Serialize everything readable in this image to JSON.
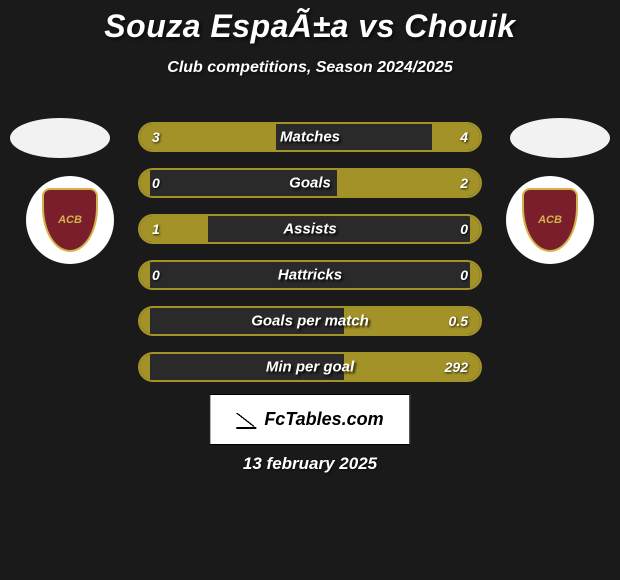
{
  "title": "Souza EspaÃ±a vs Chouik",
  "subtitle": "Club competitions, Season 2024/2025",
  "date": "13 february 2025",
  "brand": "FcTables.com",
  "badge_text": "ACB",
  "colors": {
    "bar_fill": "#a39227",
    "bar_border": "#a39227",
    "bg": "#1a1a1a",
    "badge_shield": "#7a1e2b",
    "badge_shield_border": "#d2b24a"
  },
  "bar_max_width_pct": 50,
  "stats": [
    {
      "label": "Matches",
      "left_val": "3",
      "right_val": "4",
      "left_pct": 40,
      "right_pct": 14
    },
    {
      "label": "Goals",
      "left_val": "0",
      "right_val": "2",
      "left_pct": 3,
      "right_pct": 42
    },
    {
      "label": "Assists",
      "left_val": "1",
      "right_val": "0",
      "left_pct": 20,
      "right_pct": 3
    },
    {
      "label": "Hattricks",
      "left_val": "0",
      "right_val": "0",
      "left_pct": 3,
      "right_pct": 3
    },
    {
      "label": "Goals per match",
      "left_val": "",
      "right_val": "0.5",
      "left_pct": 3,
      "right_pct": 40
    },
    {
      "label": "Min per goal",
      "left_val": "",
      "right_val": "292",
      "left_pct": 3,
      "right_pct": 40
    }
  ]
}
